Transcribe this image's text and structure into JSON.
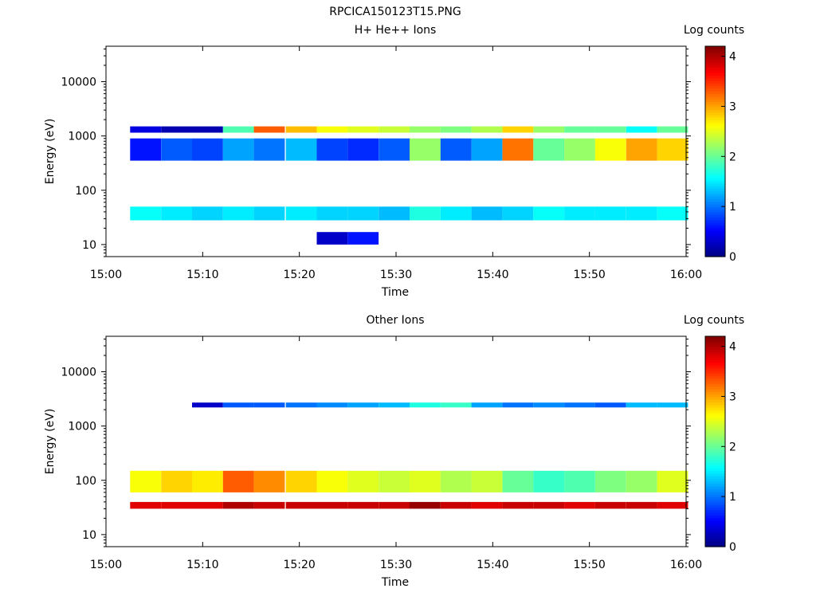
{
  "figure_title": "RPCICA150123T15.PNG",
  "colors": {
    "colormap": [
      "#00007f",
      "#0000ff",
      "#007fff",
      "#00ffff",
      "#7fff7f",
      "#ffff00",
      "#ff7f00",
      "#ff0000",
      "#7f0000"
    ],
    "axes": "#000000",
    "background": "#ffffff"
  },
  "chart_data": [
    {
      "type": "heatmap",
      "title": "H+ He++ Ions",
      "xlabel": "Time",
      "ylabel": "Energy (eV)",
      "x_ticks": [
        "15:00",
        "15:10",
        "15:20",
        "15:30",
        "15:40",
        "15:50",
        "16:00"
      ],
      "x_range_minutes": [
        0,
        60
      ],
      "y_scale": "log",
      "y_range": [
        6,
        45000
      ],
      "y_ticks": [
        "10",
        "100",
        "1000",
        "10000"
      ],
      "colorbar": {
        "label": "Log counts",
        "range": [
          0,
          4.2
        ],
        "ticks": [
          "0",
          "1",
          "2",
          "3",
          "4"
        ]
      },
      "column_start_minutes": [
        2.5,
        5.7,
        8.9,
        12.1,
        15.3,
        18.6,
        21.8,
        25.0,
        28.2,
        31.4,
        34.6,
        37.8,
        41.0,
        44.2,
        47.4,
        50.6,
        53.8,
        57.0
      ],
      "column_width_minutes": 3.2,
      "band_cells": [
        {
          "energy_range_eV": [
            28,
            50
          ],
          "log_counts": [
            1.6,
            1.5,
            1.4,
            1.5,
            1.4,
            1.5,
            1.4,
            1.4,
            1.3,
            1.7,
            1.5,
            1.3,
            1.4,
            1.6,
            1.5,
            1.5,
            1.5,
            1.6
          ]
        },
        {
          "energy_range_eV": [
            350,
            900
          ],
          "log_counts": [
            0.6,
            0.9,
            0.8,
            1.2,
            1.0,
            1.3,
            0.8,
            0.7,
            0.9,
            2.2,
            0.9,
            1.2,
            3.2,
            2.0,
            2.2,
            2.6,
            3.0,
            2.8
          ]
        },
        {
          "energy_range_eV": [
            1150,
            1500
          ],
          "log_counts": [
            0.4,
            0.2,
            0.2,
            1.9,
            3.3,
            2.9,
            2.6,
            2.5,
            2.4,
            2.2,
            2.1,
            2.3,
            2.8,
            2.2,
            2.0,
            2.0,
            1.6,
            2.0
          ]
        },
        {
          "energy_range_eV": [
            10,
            17
          ],
          "log_counts": [
            0,
            0,
            0,
            0,
            0,
            0,
            0.3,
            0.6,
            0,
            0,
            0,
            0,
            0,
            0,
            0,
            0,
            0,
            0
          ]
        }
      ]
    },
    {
      "type": "heatmap",
      "title": "Other Ions",
      "xlabel": "Time",
      "ylabel": "Energy (eV)",
      "x_ticks": [
        "15:00",
        "15:10",
        "15:20",
        "15:30",
        "15:40",
        "15:50",
        "16:00"
      ],
      "x_range_minutes": [
        0,
        60
      ],
      "y_scale": "log",
      "y_range": [
        6,
        45000
      ],
      "y_ticks": [
        "10",
        "100",
        "1000",
        "10000"
      ],
      "colorbar": {
        "label": "Log counts",
        "range": [
          0,
          4.2
        ],
        "ticks": [
          "0",
          "1",
          "2",
          "3",
          "4"
        ]
      },
      "column_start_minutes": [
        2.5,
        5.7,
        8.9,
        12.1,
        15.3,
        18.6,
        21.8,
        25.0,
        28.2,
        31.4,
        34.6,
        37.8,
        41.0,
        44.2,
        47.4,
        50.6,
        53.8,
        57.0
      ],
      "column_width_minutes": 3.2,
      "band_cells": [
        {
          "energy_range_eV": [
            30,
            40
          ],
          "log_counts": [
            3.8,
            3.8,
            3.8,
            4.0,
            3.9,
            3.9,
            3.9,
            3.9,
            3.9,
            4.1,
            3.9,
            3.8,
            3.9,
            3.9,
            3.8,
            3.9,
            3.9,
            3.8
          ]
        },
        {
          "energy_range_eV": [
            60,
            150
          ],
          "log_counts": [
            2.6,
            2.8,
            2.7,
            3.3,
            3.1,
            2.8,
            2.6,
            2.5,
            2.4,
            2.5,
            2.3,
            2.4,
            2.0,
            1.8,
            1.9,
            2.1,
            2.2,
            2.5
          ]
        },
        {
          "energy_range_eV": [
            2200,
            2700
          ],
          "log_counts": [
            0,
            0,
            0.3,
            0.9,
            0.9,
            1.0,
            1.1,
            1.2,
            1.3,
            1.7,
            1.8,
            1.2,
            1.0,
            1.1,
            1.0,
            0.9,
            1.3,
            1.3
          ]
        }
      ]
    }
  ]
}
